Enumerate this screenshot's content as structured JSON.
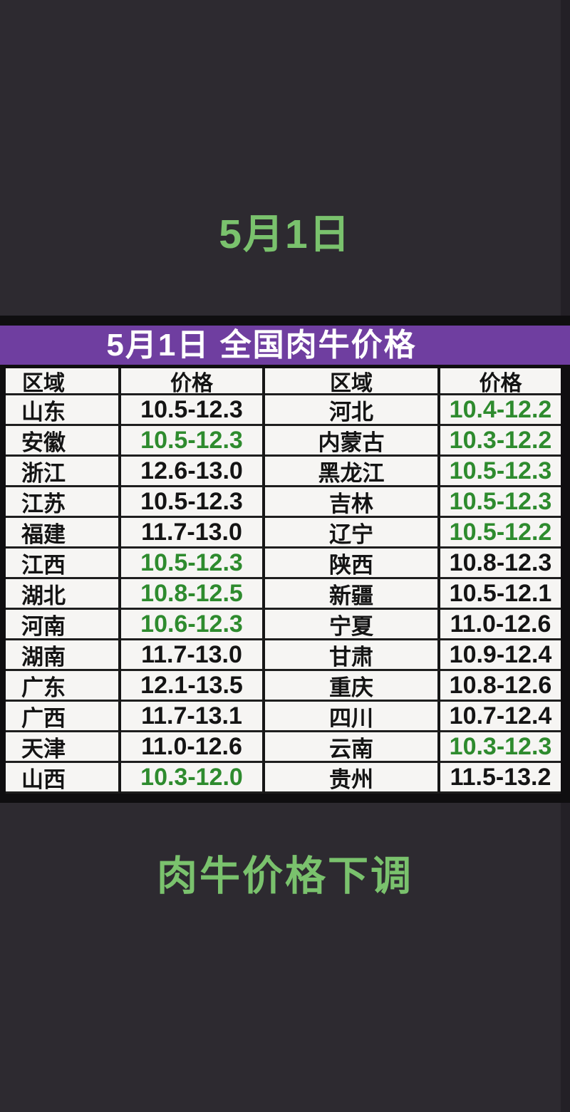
{
  "header": {
    "date_title": "5月1日"
  },
  "footer": {
    "caption": "肉牛价格下调"
  },
  "colors": {
    "background": "#2d2a30",
    "bright_green_text": "#7ac26d",
    "table_green_price": "#2e8b2e",
    "table_black_price": "#141414",
    "header_purple": "#6f3ea0",
    "cell_background": "#f6f5f3"
  },
  "chart_data": {
    "type": "table",
    "title": "5月1日 全国肉牛价格",
    "columns": [
      "区域",
      "价格",
      "区域",
      "价格"
    ],
    "rows": [
      {
        "cells": [
          "山东",
          "10.5-12.3",
          "河北",
          "10.4-12.2"
        ],
        "price_colors": [
          "black",
          "green"
        ]
      },
      {
        "cells": [
          "安徽",
          "10.5-12.3",
          "内蒙古",
          "10.3-12.2"
        ],
        "price_colors": [
          "green",
          "green"
        ]
      },
      {
        "cells": [
          "浙江",
          "12.6-13.0",
          "黑龙江",
          "10.5-12.3"
        ],
        "price_colors": [
          "black",
          "green"
        ]
      },
      {
        "cells": [
          "江苏",
          "10.5-12.3",
          "吉林",
          "10.5-12.3"
        ],
        "price_colors": [
          "black",
          "green"
        ]
      },
      {
        "cells": [
          "福建",
          "11.7-13.0",
          "辽宁",
          "10.5-12.2"
        ],
        "price_colors": [
          "black",
          "green"
        ]
      },
      {
        "cells": [
          "江西",
          "10.5-12.3",
          "陕西",
          "10.8-12.3"
        ],
        "price_colors": [
          "green",
          "black"
        ]
      },
      {
        "cells": [
          "湖北",
          "10.8-12.5",
          "新疆",
          "10.5-12.1"
        ],
        "price_colors": [
          "green",
          "black"
        ]
      },
      {
        "cells": [
          "河南",
          "10.6-12.3",
          "宁夏",
          "11.0-12.6"
        ],
        "price_colors": [
          "green",
          "black"
        ]
      },
      {
        "cells": [
          "湖南",
          "11.7-13.0",
          "甘肃",
          "10.9-12.4"
        ],
        "price_colors": [
          "black",
          "black"
        ]
      },
      {
        "cells": [
          "广东",
          "12.1-13.5",
          "重庆",
          "10.8-12.6"
        ],
        "price_colors": [
          "black",
          "black"
        ]
      },
      {
        "cells": [
          "广西",
          "11.7-13.1",
          "四川",
          "10.7-12.4"
        ],
        "price_colors": [
          "black",
          "black"
        ]
      },
      {
        "cells": [
          "天津",
          "11.0-12.6",
          "云南",
          "10.3-12.3"
        ],
        "price_colors": [
          "black",
          "green"
        ]
      },
      {
        "cells": [
          "山西",
          "10.3-12.0",
          "贵州",
          "11.5-13.2"
        ],
        "price_colors": [
          "green",
          "black"
        ]
      }
    ]
  }
}
